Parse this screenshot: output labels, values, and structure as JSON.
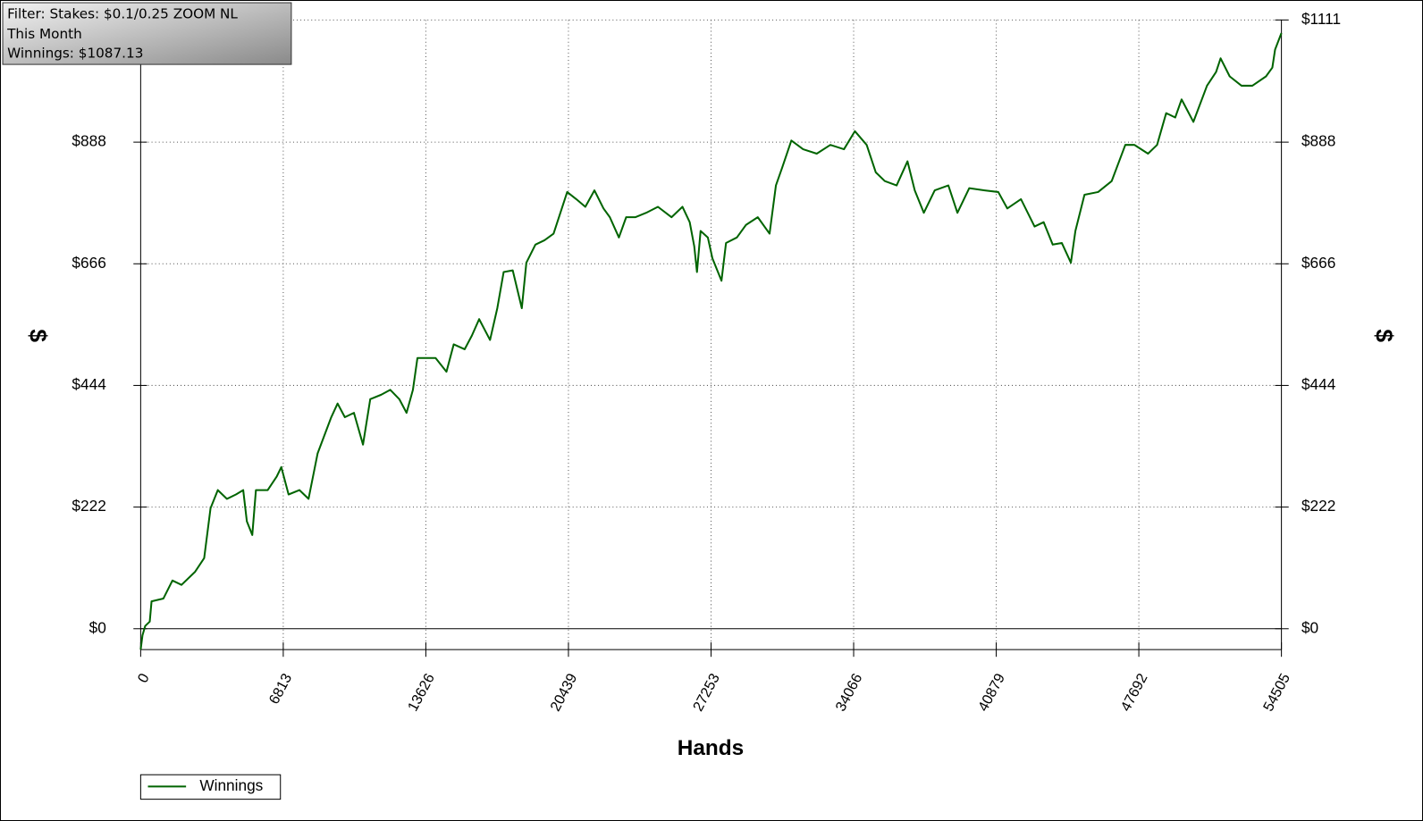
{
  "chart_data": {
    "type": "line",
    "info": [
      "Filter: Stakes: $0.1/0.25 ZOOM NL",
      "This Month",
      "Winnings: $1087.13"
    ],
    "x_label": "Hands",
    "y_label": "$",
    "xlim": [
      0,
      54505
    ],
    "ylim": [
      -38,
      1111
    ],
    "xticks": [
      0,
      6813,
      13626,
      20439,
      27253,
      34066,
      40879,
      47692,
      54505
    ],
    "yticks": [
      {
        "value": 0,
        "label": "$0"
      },
      {
        "value": 222,
        "label": "$222"
      },
      {
        "value": 444,
        "label": "$444"
      },
      {
        "value": 666,
        "label": "$666"
      },
      {
        "value": 888,
        "label": "$888"
      },
      {
        "value": 1111,
        "label": "$1111"
      }
    ],
    "grid": true,
    "x": [
      0,
      87,
      217,
      434,
      520,
      1084,
      1518,
      1951,
      2602,
      3035,
      3339,
      3686,
      4119,
      4553,
      4900,
      5073,
      5333,
      5507,
      6070,
      6504,
      6720,
      7067,
      7588,
      8021,
      8455,
      9106,
      9409,
      9756,
      10190,
      10623,
      10970,
      11490,
      11924,
      12357,
      12704,
      13008,
      13224,
      13658,
      14091,
      14611,
      14958,
      15479,
      15826,
      16173,
      16693,
      17040,
      17344,
      17777,
      18211,
      18428,
      18861,
      19295,
      19728,
      20379,
      20812,
      21246,
      21680,
      22113,
      22417,
      22850,
      23197,
      23631,
      24151,
      24715,
      25366,
      25886,
      26233,
      26450,
      26580,
      26753,
      27100,
      27317,
      27751,
      27968,
      28488,
      28922,
      29485,
      30049,
      30352,
      30656,
      31090,
      31653,
      32303,
      32954,
      33604,
      34124,
      34688,
      35122,
      35555,
      36119,
      36639,
      36986,
      37420,
      37940,
      38591,
      39024,
      39588,
      40325,
      40976,
      41409,
      42060,
      42710,
      43144,
      43578,
      44011,
      44445,
      44661,
      45095,
      45746,
      46396,
      47046,
      47480,
      48131,
      48564,
      48998,
      49431,
      49735,
      50299,
      50949,
      51383,
      51599,
      52033,
      52597,
      53117,
      53768,
      54071,
      54202,
      54505
    ],
    "series": [
      {
        "name": "Winnings",
        "color": "#006400",
        "values": [
          -38,
          -12,
          5,
          13,
          50,
          55,
          88,
          80,
          104,
          129,
          220,
          253,
          237,
          245,
          253,
          196,
          171,
          253,
          253,
          278,
          295,
          245,
          253,
          237,
          320,
          386,
          411,
          386,
          394,
          336,
          419,
          427,
          436,
          419,
          394,
          436,
          494,
          494,
          494,
          469,
          519,
          510,
          535,
          565,
          527,
          585,
          651,
          654,
          585,
          668,
          701,
          709,
          721,
          797,
          784,
          770,
          800,
          767,
          751,
          714,
          751,
          751,
          759,
          770,
          751,
          770,
          742,
          698,
          651,
          726,
          714,
          676,
          635,
          704,
          714,
          737,
          751,
          721,
          809,
          842,
          891,
          875,
          867,
          883,
          875,
          908,
          883,
          833,
          817,
          809,
          853,
          800,
          759,
          800,
          809,
          759,
          804,
          800,
          797,
          767,
          784,
          734,
          742,
          701,
          704,
          668,
          726,
          792,
          797,
          817,
          883,
          883,
          867,
          883,
          941,
          933,
          966,
          925,
          991,
          1016,
          1041,
          1008,
          991,
          991,
          1008,
          1024,
          1057,
          1087.13
        ]
      }
    ]
  }
}
